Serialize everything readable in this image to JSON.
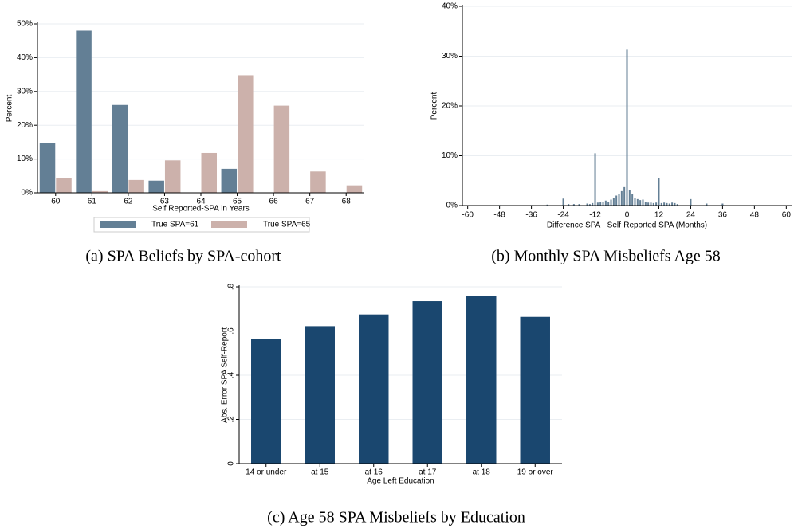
{
  "chart_data": [
    {
      "type": "bar",
      "caption": "(a) SPA Beliefs by SPA-cohort",
      "x_label": "Self Reported-SPA in Years",
      "y_label": "Percent",
      "categories": [
        "60",
        "61",
        "62",
        "63",
        "64",
        "65",
        "66",
        "67",
        "68"
      ],
      "series": [
        {
          "name": "True SPA=61",
          "color": "#637f95",
          "values": [
            14.7,
            48,
            26,
            3.6,
            0,
            7.1,
            0,
            0,
            0
          ]
        },
        {
          "name": "True SPA=65",
          "color": "#ccb1ab",
          "values": [
            4.3,
            0.5,
            3.8,
            9.6,
            11.8,
            34.8,
            25.8,
            6.3,
            2.2
          ]
        }
      ],
      "ylim": [
        0,
        50
      ],
      "yticks": [
        {
          "value": 0,
          "label": "0%"
        },
        {
          "value": 10,
          "label": "10%"
        },
        {
          "value": 20,
          "label": "20%"
        },
        {
          "value": 30,
          "label": "30%"
        },
        {
          "value": 40,
          "label": "40%"
        },
        {
          "value": 50,
          "label": "50%"
        }
      ],
      "grid": true,
      "legend": "bottom"
    },
    {
      "type": "histogram",
      "caption": "(b) Monthly SPA Misbeliefs Age 58",
      "x_label": "Difference SPA - Self-Reported SPA (Months)",
      "y_label": "Percent",
      "color": "#637f95",
      "x": [
        -48,
        -36,
        -30,
        -24,
        -22,
        -20,
        -18,
        -15,
        -14,
        -13,
        -12,
        -11,
        -10,
        -9,
        -8,
        -7,
        -6,
        -5,
        -4,
        -3,
        -2,
        -1,
        0,
        1,
        2,
        3,
        4,
        5,
        6,
        7,
        8,
        9,
        10,
        11,
        12,
        13,
        14,
        15,
        16,
        17,
        18,
        19,
        24,
        30,
        36,
        48
      ],
      "values": [
        0.1,
        0.1,
        0.2,
        1.4,
        0.3,
        0.3,
        0.3,
        0.4,
        0.3,
        0.5,
        10.5,
        0.6,
        0.7,
        0.8,
        1.0,
        0.8,
        1.2,
        1.5,
        2.0,
        2.4,
        2.9,
        3.7,
        31.3,
        3.2,
        2.3,
        1.6,
        1.3,
        1.1,
        1.2,
        0.7,
        0.6,
        0.6,
        0.5,
        0.6,
        5.6,
        0.5,
        0.6,
        0.5,
        0.4,
        0.6,
        0.5,
        0.3,
        1.3,
        0.4,
        0.4,
        0.1
      ],
      "xlim": [
        -62,
        62
      ],
      "xticks": [
        -60,
        -48,
        -36,
        -24,
        -12,
        0,
        12,
        24,
        36,
        48,
        60
      ],
      "ylim": [
        0,
        40
      ],
      "yticks": [
        {
          "value": 0,
          "label": "0%"
        },
        {
          "value": 10,
          "label": "10%"
        },
        {
          "value": 20,
          "label": "20%"
        },
        {
          "value": 30,
          "label": "30%"
        },
        {
          "value": 40,
          "label": "40%"
        }
      ],
      "grid": true
    },
    {
      "type": "bar",
      "caption": "(c) Age 58 SPA Misbeliefs by Education",
      "x_label": "Age Left Education",
      "y_label": "Abs. Error SPA Self-Report",
      "categories": [
        "14 or under",
        "at 15",
        "at 16",
        "at 17",
        "at 18",
        "19 or over"
      ],
      "series": [
        {
          "color": "#1a476f",
          "values": [
            0.563,
            0.622,
            0.675,
            0.735,
            0.757,
            0.664
          ]
        }
      ],
      "ylim": [
        0,
        0.8
      ],
      "yticks": [
        0,
        {
          "value": 0.2,
          "label": ".2"
        },
        {
          "value": 0.4,
          "label": ".4"
        },
        {
          "value": 0.6,
          "label": ".6"
        },
        {
          "value": 0.8,
          "label": ".8"
        }
      ],
      "grid": true
    }
  ]
}
